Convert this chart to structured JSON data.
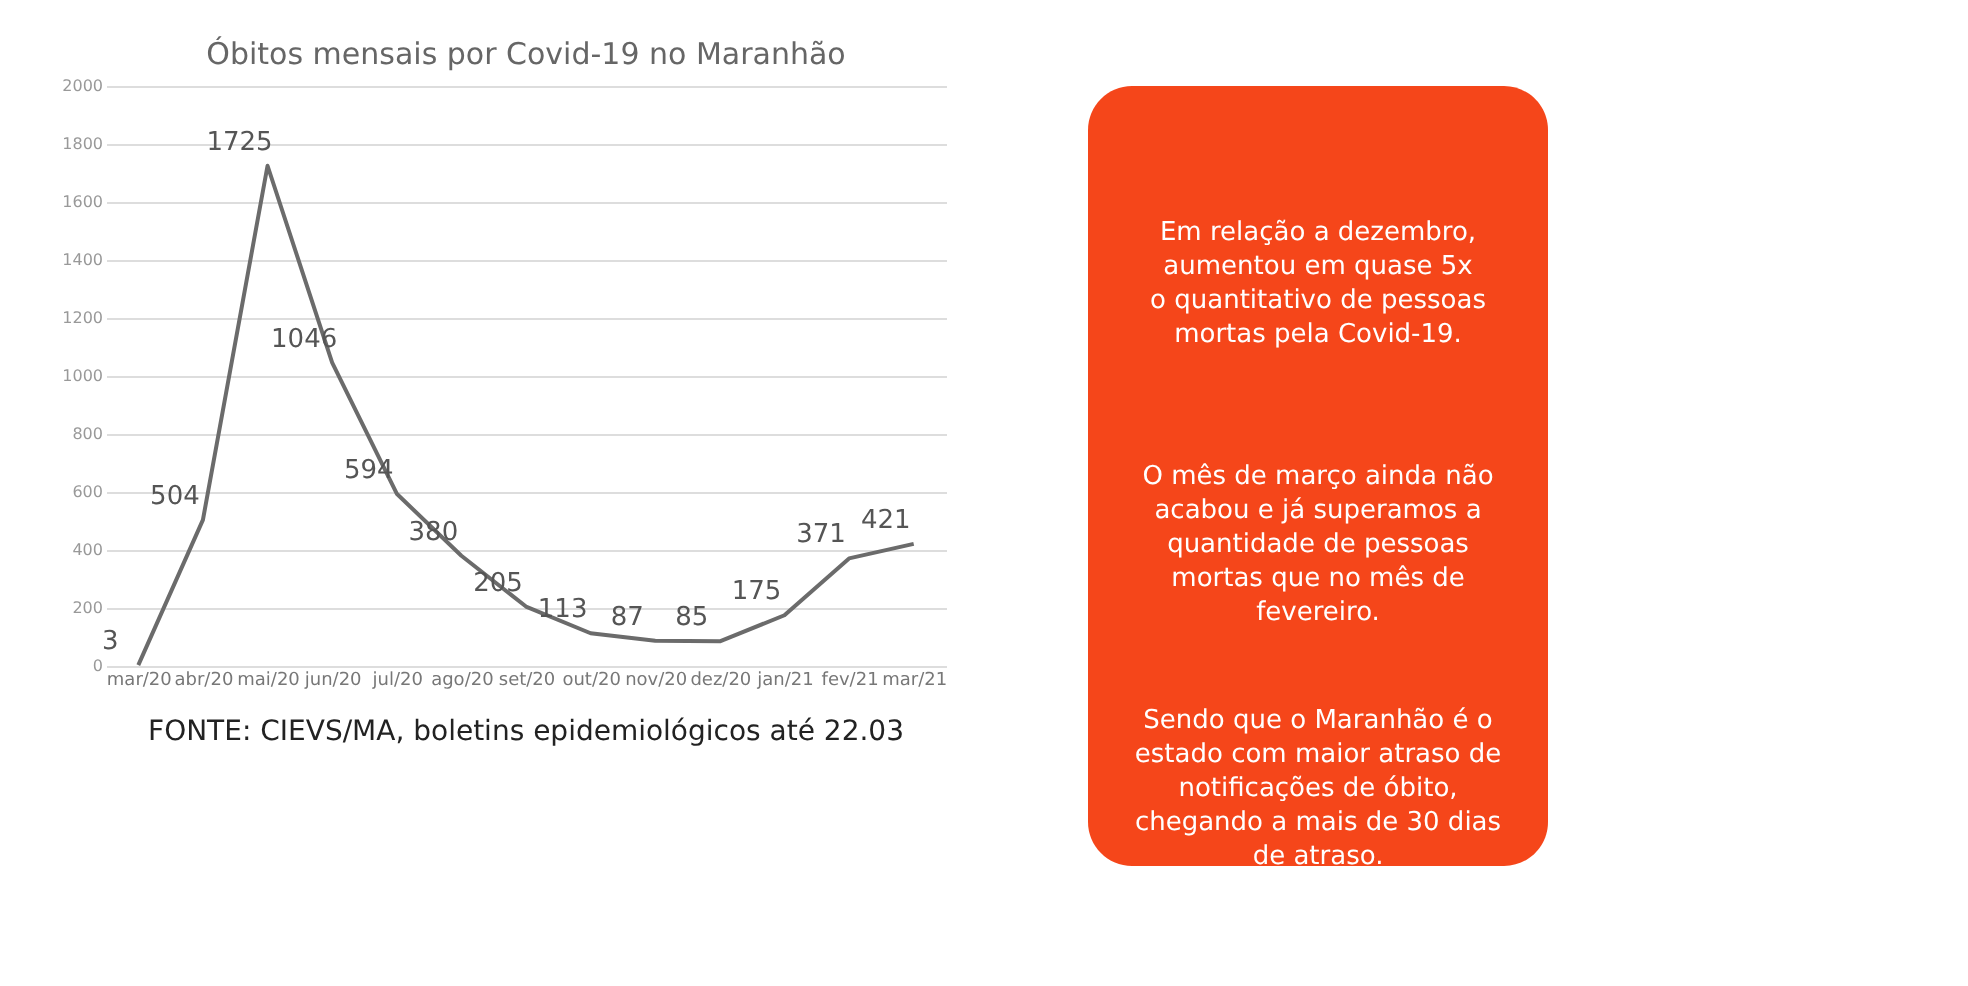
{
  "chart_data": [
    {
      "type": "line",
      "title": "Óbitos mensais por Covid-19 no Maranhão",
      "categories": [
        "mar/20",
        "abr/20",
        "mai/20",
        "jun/20",
        "jul/20",
        "ago/20",
        "set/20",
        "out/20",
        "nov/20",
        "dez/20",
        "jan/21",
        "fev/21",
        "mar/21"
      ],
      "series": [
        {
          "color": "#6b6b6b",
          "values": [
            3,
            504,
            1725,
            1046,
            594,
            380,
            205,
            113,
            87,
            85,
            175,
            371,
            421
          ]
        }
      ],
      "ylim": [
        0,
        2000
      ],
      "yticks": [
        0,
        200,
        400,
        600,
        800,
        1000,
        1200,
        1400,
        1600,
        1800,
        2000
      ],
      "grid": "y",
      "data_labels": true,
      "legend": false,
      "annotations": [
        "FONTE: CIEVS/MA, boletins epidemiológicos até 22.03"
      ]
    },
    {
      "type": "other",
      "color": "#f5461a",
      "annotations": [
        "Em relação a dezembro,\naumentou em quase 5x\no quantitativo de pessoas\nmortas pela Covid-19.",
        "O mês de março ainda não\nacabou e já superamos a\nquantidade de pessoas\nmortas que no mês de\nfevereiro.",
        "Sendo que o Maranhão é o\nestado com maior atraso de\nnotificações de óbito,\nchegando a mais de 30 dias\nde atraso."
      ]
    }
  ]
}
